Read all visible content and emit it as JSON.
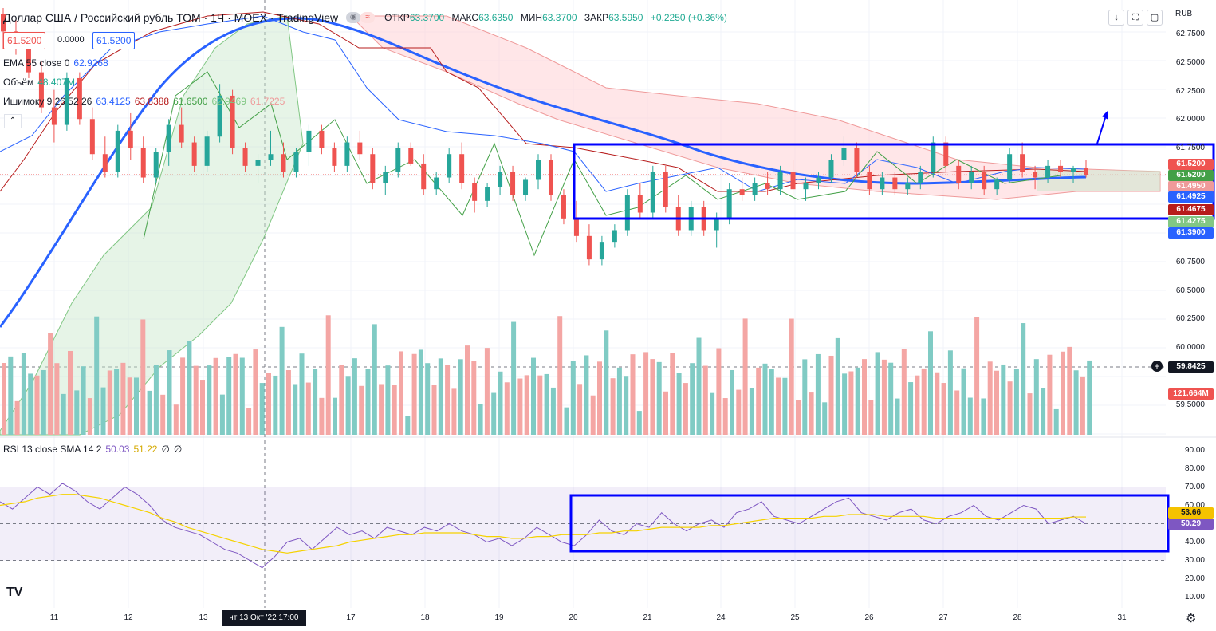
{
  "header": {
    "title": "Доллар США / Российский рубль ТОМ · 1Ч · MOEX · TradingView",
    "ohlc": [
      {
        "label": "ОТКР",
        "value": "63.3700"
      },
      {
        "label": "МАКС",
        "value": "63.6350"
      },
      {
        "label": "МИН",
        "value": "63.3700"
      },
      {
        "label": "ЗАКР",
        "value": "63.5950"
      }
    ],
    "change": "+0.2250 (+0.36%)",
    "currency": "RUB",
    "bid": "61.5200",
    "spread": "0.0000",
    "ask": "61.5200"
  },
  "legend": {
    "ema": {
      "label": "EMA 55 close 0",
      "value": "62.9268",
      "color": "#2962ff"
    },
    "volume": {
      "label": "Объём",
      "value": "48.407M",
      "color": "#22ab94"
    },
    "ichimoku": {
      "label": "Ишимоку 9 26 52 26",
      "values": [
        "63.4125",
        "63.8388",
        "61.6500",
        "62.9469",
        "61.7225"
      ],
      "colors": [
        "#2962ff",
        "#b71c1c",
        "#43a047",
        "#81c784",
        "#ef9a9a"
      ]
    },
    "rsi": {
      "label": "RSI 13 close SMA 14 2",
      "values": [
        "50.03",
        "51.22",
        "∅",
        "∅"
      ],
      "colors": [
        "#7e57c2",
        "#f5c200",
        "#131722",
        "#131722"
      ]
    }
  },
  "price_axis": [
    "62.7500",
    "62.5000",
    "62.2500",
    "62.0000",
    "61.7500",
    "60.7500",
    "60.5000",
    "60.2500",
    "60.0000",
    "59.5000"
  ],
  "price_tags": [
    {
      "value": "61.5200",
      "color": "#ef5350"
    },
    {
      "value": "61.5200",
      "color": "#43a047"
    },
    {
      "value": "61.4950",
      "color": "#ef9a9a"
    },
    {
      "value": "61.4925",
      "color": "#2962ff"
    },
    {
      "value": "61.4675",
      "color": "#b71c1c"
    },
    {
      "value": "61.4275",
      "color": "#81c784"
    },
    {
      "value": "61.3900",
      "color": "#2962ff"
    }
  ],
  "crosshair": {
    "price": "59.8425",
    "volume": "121.664M"
  },
  "rsi_axis": [
    "90.00",
    "80.00",
    "70.00",
    "60.00",
    "40.00",
    "30.00",
    "20.00",
    "10.00"
  ],
  "rsi_tags": [
    {
      "value": "53.66",
      "color": "#f5c200"
    },
    {
      "value": "50.29",
      "color": "#7e57c2"
    }
  ],
  "dates": [
    "11",
    "12",
    "13",
    "17",
    "18",
    "19",
    "20",
    "21",
    "24",
    "25",
    "26",
    "27",
    "28",
    "31"
  ],
  "date_highlight": "чт 13 Окт '22   17:00",
  "colors": {
    "up": "#26a69a",
    "down": "#ef5350",
    "box": "#0000ff",
    "grid": "#f0f3fa"
  },
  "chart_data": {
    "type": "candlestick",
    "title": "Доллар США / Российский рубль ТОМ, 1Ч, MOEX",
    "ylim": [
      59.3,
      62.95
    ],
    "candles": [
      [
        62.9,
        62.95,
        62.6,
        62.75
      ],
      [
        62.75,
        62.85,
        62.55,
        62.62
      ],
      [
        62.62,
        62.7,
        62.35,
        62.4
      ],
      [
        62.4,
        62.5,
        62.05,
        62.1
      ],
      [
        62.1,
        62.25,
        61.8,
        61.95
      ],
      [
        61.95,
        62.4,
        61.9,
        62.35
      ],
      [
        62.35,
        62.4,
        61.95,
        62.0
      ],
      [
        62.0,
        62.1,
        61.65,
        61.7
      ],
      [
        61.7,
        61.85,
        61.5,
        61.55
      ],
      [
        61.55,
        61.95,
        61.5,
        61.9
      ],
      [
        61.9,
        62.05,
        61.65,
        61.75
      ],
      [
        61.75,
        61.85,
        61.45,
        61.5
      ],
      [
        61.5,
        61.75,
        61.45,
        61.72
      ],
      [
        61.72,
        62.0,
        61.6,
        61.95
      ],
      [
        61.95,
        62.1,
        61.75,
        61.8
      ],
      [
        61.8,
        61.85,
        61.55,
        61.6
      ],
      [
        61.6,
        61.9,
        61.55,
        61.85
      ],
      [
        61.85,
        62.3,
        61.8,
        62.2
      ],
      [
        62.2,
        62.25,
        61.7,
        61.75
      ],
      [
        61.75,
        61.8,
        61.55,
        61.6
      ],
      [
        61.6,
        61.7,
        61.45,
        61.65
      ],
      [
        61.65,
        61.9,
        61.6,
        61.7
      ],
      [
        61.7,
        61.8,
        61.5,
        61.55
      ],
      [
        61.55,
        61.75,
        61.5,
        61.72
      ],
      [
        61.72,
        61.95,
        61.6,
        61.9
      ],
      [
        61.9,
        61.95,
        61.7,
        61.75
      ],
      [
        61.75,
        61.8,
        61.55,
        61.6
      ],
      [
        61.6,
        61.85,
        61.55,
        61.8
      ],
      [
        61.8,
        61.9,
        61.65,
        61.7
      ],
      [
        61.7,
        61.75,
        61.4,
        61.45
      ],
      [
        61.45,
        61.6,
        61.35,
        61.55
      ],
      [
        61.55,
        61.8,
        61.5,
        61.75
      ],
      [
        61.75,
        61.8,
        61.6,
        61.62
      ],
      [
        61.62,
        61.7,
        61.35,
        61.4
      ],
      [
        61.4,
        61.55,
        61.35,
        61.5
      ],
      [
        61.5,
        61.75,
        61.45,
        61.7
      ],
      [
        61.7,
        61.8,
        61.4,
        61.45
      ],
      [
        61.45,
        61.5,
        61.2,
        61.3
      ],
      [
        61.3,
        61.45,
        61.25,
        61.42
      ],
      [
        61.42,
        61.6,
        61.35,
        61.55
      ],
      [
        61.55,
        61.6,
        61.3,
        61.35
      ],
      [
        61.35,
        61.5,
        61.3,
        61.48
      ],
      [
        61.48,
        61.7,
        61.4,
        61.65
      ],
      [
        61.65,
        61.7,
        61.3,
        61.35
      ],
      [
        61.35,
        61.4,
        61.1,
        61.15
      ],
      [
        61.15,
        61.3,
        60.95,
        61.0
      ],
      [
        61.0,
        61.1,
        60.75,
        60.8
      ],
      [
        60.8,
        61.0,
        60.75,
        60.95
      ],
      [
        60.95,
        61.1,
        60.9,
        61.05
      ],
      [
        61.05,
        61.4,
        61.0,
        61.35
      ],
      [
        61.35,
        61.45,
        61.15,
        61.2
      ],
      [
        61.2,
        61.6,
        61.15,
        61.55
      ],
      [
        61.55,
        61.6,
        61.2,
        61.25
      ],
      [
        61.25,
        61.35,
        61.0,
        61.05
      ],
      [
        61.05,
        61.3,
        61.0,
        61.25
      ],
      [
        61.25,
        61.3,
        61.0,
        61.05
      ],
      [
        61.05,
        61.2,
        60.9,
        61.15
      ],
      [
        61.15,
        61.45,
        61.1,
        61.4
      ],
      [
        61.4,
        61.5,
        61.3,
        61.35
      ],
      [
        61.35,
        61.5,
        61.3,
        61.45
      ],
      [
        61.45,
        61.55,
        61.35,
        61.4
      ],
      [
        61.4,
        61.6,
        61.35,
        61.55
      ],
      [
        61.55,
        61.65,
        61.35,
        61.4
      ],
      [
        61.4,
        61.5,
        61.3,
        61.45
      ],
      [
        61.45,
        61.55,
        61.4,
        61.5
      ],
      [
        61.5,
        61.7,
        61.45,
        61.65
      ],
      [
        61.65,
        61.85,
        61.6,
        61.75
      ],
      [
        61.75,
        61.8,
        61.5,
        61.55
      ],
      [
        61.55,
        61.6,
        61.35,
        61.4
      ],
      [
        61.4,
        61.55,
        61.35,
        61.5
      ],
      [
        61.5,
        61.55,
        61.35,
        61.4
      ],
      [
        61.4,
        61.5,
        61.35,
        61.45
      ],
      [
        61.45,
        61.6,
        61.4,
        61.55
      ],
      [
        61.55,
        61.85,
        61.5,
        61.8
      ],
      [
        61.8,
        61.85,
        61.55,
        61.6
      ],
      [
        61.6,
        61.65,
        61.4,
        61.45
      ],
      [
        61.45,
        61.6,
        61.4,
        61.55
      ],
      [
        61.55,
        61.6,
        61.35,
        61.4
      ],
      [
        61.4,
        61.5,
        61.35,
        61.48
      ],
      [
        61.48,
        61.75,
        61.45,
        61.7
      ],
      [
        61.7,
        61.8,
        61.5,
        61.55
      ],
      [
        61.55,
        61.6,
        61.4,
        61.5
      ],
      [
        61.5,
        61.65,
        61.45,
        61.6
      ],
      [
        61.6,
        61.65,
        61.5,
        61.55
      ],
      [
        61.55,
        61.6,
        61.45,
        61.58
      ],
      [
        61.58,
        61.65,
        61.5,
        61.52
      ]
    ],
    "volume_hint": "mixed red/green histogram below price",
    "rsi": [
      62,
      58,
      64,
      70,
      66,
      72,
      68,
      62,
      58,
      64,
      70,
      66,
      60,
      52,
      48,
      46,
      44,
      40,
      36,
      34,
      30,
      26,
      32,
      40,
      42,
      36,
      42,
      48,
      44,
      46,
      42,
      48,
      46,
      44,
      48,
      46,
      50,
      46,
      44,
      40,
      42,
      38,
      42,
      48,
      44,
      40,
      38,
      44,
      52,
      46,
      44,
      50,
      48,
      56,
      50,
      46,
      50,
      52,
      48,
      56,
      58,
      62,
      54,
      52,
      50,
      54,
      58,
      62,
      64,
      56,
      54,
      52,
      56,
      58,
      52,
      50,
      54,
      56,
      60,
      54,
      52,
      56,
      60,
      58,
      50,
      52,
      54,
      50
    ],
    "rsi_sma": [
      60,
      61,
      62,
      64,
      65,
      66,
      66,
      65,
      64,
      62,
      60,
      58,
      56,
      53,
      51,
      48,
      46,
      44,
      42,
      40,
      38,
      36,
      35,
      34,
      35,
      36,
      37,
      38,
      40,
      41,
      42,
      43,
      44,
      44,
      45,
      45,
      45,
      45,
      44,
      43,
      43,
      42,
      42,
      43,
      43,
      44,
      44,
      44,
      45,
      45,
      46,
      46,
      47,
      48,
      48,
      48,
      48,
      49,
      49,
      50,
      51,
      52,
      53,
      53,
      53,
      53,
      54,
      54,
      55,
      55,
      55,
      54,
      54,
      54,
      54,
      53,
      53,
      53,
      53,
      53,
      53,
      53,
      53,
      53,
      53,
      53,
      53.66,
      53.66
    ]
  }
}
